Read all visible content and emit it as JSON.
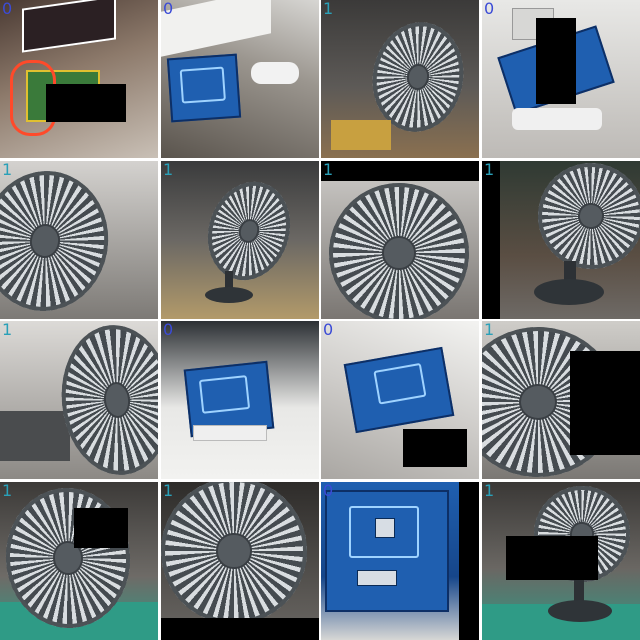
{
  "tiles": [
    {
      "label": "0",
      "scene": "rfid-board",
      "masks": 1
    },
    {
      "label": "0",
      "scene": "rfid-board",
      "masks": 0
    },
    {
      "label": "1",
      "scene": "desk-fan",
      "masks": 0
    },
    {
      "label": "0",
      "scene": "rfid-board",
      "masks": 1
    },
    {
      "label": "1",
      "scene": "desk-fan",
      "masks": 0
    },
    {
      "label": "1",
      "scene": "desk-fan",
      "masks": 0
    },
    {
      "label": "1",
      "scene": "desk-fan",
      "masks": 1
    },
    {
      "label": "1",
      "scene": "desk-fan",
      "masks": 1
    },
    {
      "label": "1",
      "scene": "desk-fan",
      "masks": 0
    },
    {
      "label": "0",
      "scene": "rfid-board",
      "masks": 0
    },
    {
      "label": "0",
      "scene": "rfid-board",
      "masks": 1
    },
    {
      "label": "1",
      "scene": "desk-fan",
      "masks": 1
    },
    {
      "label": "1",
      "scene": "desk-fan",
      "masks": 1
    },
    {
      "label": "1",
      "scene": "desk-fan",
      "masks": 1
    },
    {
      "label": "0",
      "scene": "rfid-board",
      "masks": 1
    },
    {
      "label": "1",
      "scene": "desk-fan",
      "masks": 1
    }
  ],
  "colors": {
    "label_0": "#3b4bd6",
    "label_1": "#2aa0b8",
    "mask": "#000000",
    "board": "#1f5fb0",
    "fan": "#454b50",
    "mat": "#2f9b86"
  }
}
